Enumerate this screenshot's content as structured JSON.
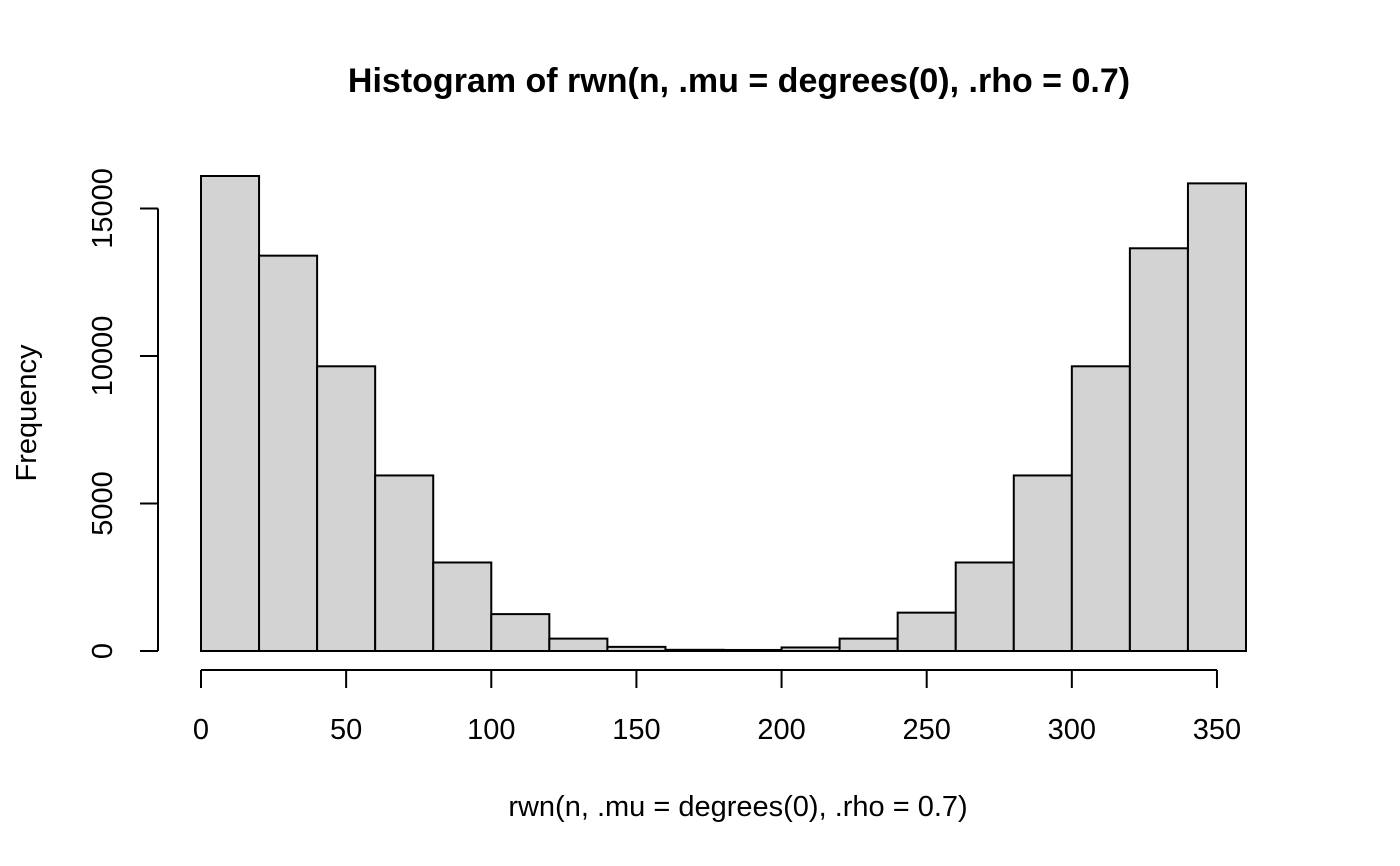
{
  "chart_data": {
    "type": "bar",
    "title": "Histogram of rwn(n, .mu = degrees(0), .rho = 0.7)",
    "xlabel": "rwn(n, .mu = degrees(0), .rho = 0.7)",
    "ylabel": "Frequency",
    "bar_color": "#d3d3d3",
    "bin_edges": [
      0,
      20,
      40,
      60,
      80,
      100,
      120,
      140,
      160,
      180,
      200,
      220,
      240,
      260,
      280,
      300,
      320,
      340,
      360
    ],
    "values": [
      16100,
      13400,
      9650,
      5950,
      3000,
      1250,
      420,
      140,
      40,
      35,
      120,
      420,
      1300,
      3000,
      5950,
      9650,
      13650,
      15850
    ],
    "xlim": [
      0,
      360
    ],
    "ylim": [
      0,
      16100
    ],
    "x_ticks": [
      0,
      50,
      100,
      150,
      200,
      250,
      300,
      350
    ],
    "y_ticks": [
      0,
      5000,
      10000,
      15000
    ],
    "grid": false
  }
}
